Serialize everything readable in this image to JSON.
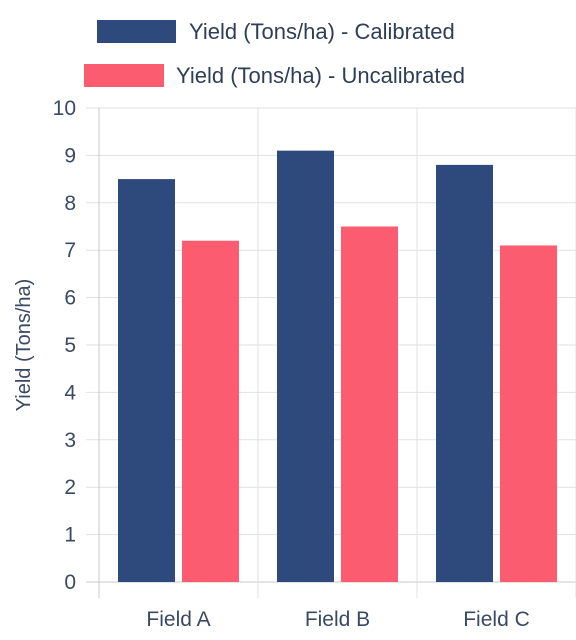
{
  "chart_data": {
    "type": "bar",
    "categories": [
      "Field A",
      "Field B",
      "Field C"
    ],
    "series": [
      {
        "name": "Yield (Tons/ha) - Calibrated",
        "values": [
          8.5,
          9.1,
          8.8
        ],
        "color": "#2e4a7d"
      },
      {
        "name": "Yield (Tons/ha) - Uncalibrated",
        "values": [
          7.2,
          7.5,
          7.1
        ],
        "color": "#fc5c6f"
      }
    ],
    "xlabel": "",
    "ylabel": "Yield (Tons/ha)",
    "ylim": [
      0,
      10
    ],
    "yticks": [
      "0",
      "1",
      "2",
      "3",
      "4",
      "5",
      "6",
      "7",
      "8",
      "9",
      "10"
    ],
    "grid": true,
    "legend_position": "top"
  }
}
